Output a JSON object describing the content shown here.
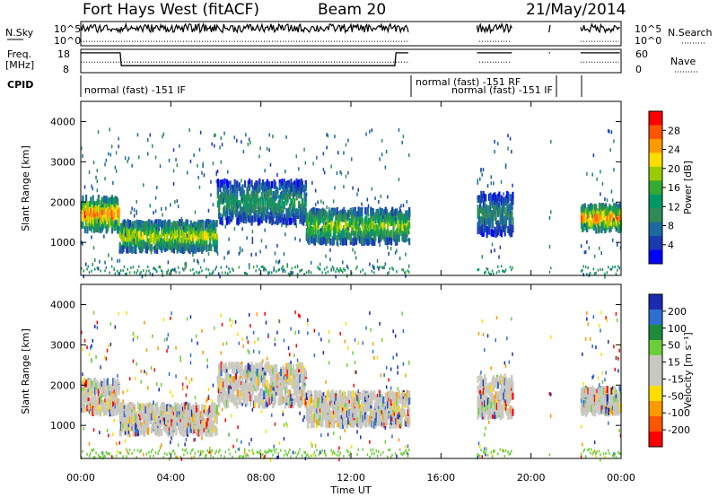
{
  "header": {
    "station": "Fort Hays West (fitACF)",
    "beam": "Beam 20",
    "date": "21/May/2014"
  },
  "noise_panel": {
    "left_label": "N.Sky",
    "right_label": "N.Search",
    "left_ticks": [
      "10^5",
      "10^0"
    ],
    "right_ticks": [
      "10^5",
      "10^0"
    ]
  },
  "freq_panel": {
    "left_label_1": "Freq.",
    "left_label_2": "[MHz]",
    "right_label": "Nave",
    "left_ticks": [
      "18",
      "8"
    ],
    "right_ticks": [
      "60",
      "0"
    ]
  },
  "cpid": {
    "label": "CPID",
    "entries": [
      {
        "text": "normal (fast) -151 IF"
      },
      {
        "text": "normal (fast) -151  RF"
      },
      {
        "text": "normal (fast) -151 IF"
      }
    ]
  },
  "colorbar_power": {
    "title": "Power [dB]",
    "ticks": [
      "28",
      "24",
      "20",
      "16",
      "12",
      "8",
      "4"
    ],
    "colors": [
      "#ff0000",
      "#ff5500",
      "#ff9900",
      "#ffdd00",
      "#99cc00",
      "#33aa33",
      "#009966",
      "#2e8b57",
      "#1a6aa0",
      "#1a3ab0",
      "#0000ff"
    ]
  },
  "colorbar_velocity": {
    "title": "Velocity [m s⁻¹]",
    "ticks": [
      "200",
      "100",
      "50",
      "15",
      "-15",
      "-50",
      "-100",
      "-200"
    ],
    "colors": [
      "#1a2bb0",
      "#2e6fd0",
      "#1f8a3a",
      "#6ccf3a",
      "#c8c8c0",
      "#c8c8c0",
      "#ffdd00",
      "#ff9900",
      "#ff5500",
      "#ff0000"
    ]
  },
  "chart_data": {
    "type": "heatmap",
    "xlabel": "Time UT",
    "ylabel": "Slant Range [km]",
    "x_ticks": [
      "00:00",
      "04:00",
      "08:00",
      "12:00",
      "16:00",
      "20:00",
      "00:00"
    ],
    "x_range_hours": [
      0,
      24
    ],
    "y_range_km": [
      180,
      4500
    ],
    "y_ticks": [
      1000,
      2000,
      3000,
      4000
    ],
    "panels": [
      {
        "parameter": "Power",
        "units": "dB",
        "scale": [
          0,
          30
        ],
        "data_intervals_ut_hours": [
          [
            0.0,
            14.6
          ],
          [
            17.6,
            19.2
          ],
          [
            20.8,
            20.9
          ],
          [
            22.2,
            24.0
          ]
        ],
        "echo_bands": [
          {
            "ut": [
              0.0,
              1.7
            ],
            "range_km": [
              1300,
              2100
            ],
            "peak_power_db": 26
          },
          {
            "ut": [
              1.7,
              6.0
            ],
            "range_km": [
              800,
              1500
            ],
            "peak_power_db": 20
          },
          {
            "ut": [
              6.0,
              10.0
            ],
            "range_km": [
              1500,
              2500
            ],
            "peak_power_db": 12
          },
          {
            "ut": [
              10.0,
              14.6
            ],
            "range_km": [
              1000,
              1800
            ],
            "peak_power_db": 18
          },
          {
            "ut": [
              17.6,
              19.2
            ],
            "range_km": [
              1200,
              2200
            ],
            "peak_power_db": 10
          },
          {
            "ut": [
              22.2,
              24.0
            ],
            "range_km": [
              1300,
              1900
            ],
            "peak_power_db": 26
          }
        ]
      },
      {
        "parameter": "Velocity",
        "units": "m s^-1",
        "scale": [
          -250,
          250
        ],
        "data_intervals_ut_hours": [
          [
            0.0,
            14.6
          ],
          [
            17.6,
            19.2
          ],
          [
            20.8,
            20.9
          ],
          [
            22.2,
            24.0
          ]
        ],
        "dominant_velocity_ms": [
          -15,
          15
        ]
      }
    ]
  }
}
